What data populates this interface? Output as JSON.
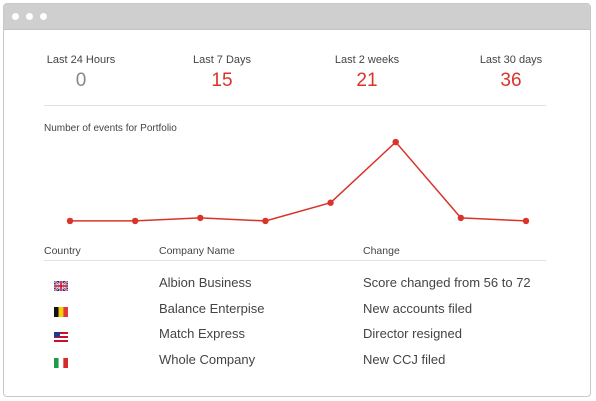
{
  "window": {
    "controls": [
      "window-dot",
      "window-dot",
      "window-dot"
    ]
  },
  "stats": [
    {
      "label": "Last 24 Hours",
      "value": "0"
    },
    {
      "label": "Last 7 Days",
      "value": "15"
    },
    {
      "label": "Last 2 weeks",
      "value": "21"
    },
    {
      "label": "Last 30 days",
      "value": "36"
    }
  ],
  "chart_data": {
    "type": "line",
    "title": "Number of events for Portfolio",
    "values": [
      2,
      2,
      3,
      2,
      8,
      28,
      3,
      2
    ],
    "ylim": [
      0,
      30
    ],
    "grid": false,
    "color": "#d9332a"
  },
  "table": {
    "headers": {
      "country": "Country",
      "company": "Company Name",
      "change": "Change"
    },
    "rows": [
      {
        "flag": "uk-flag-icon",
        "company": "Albion Business",
        "change": "Score changed from 56 to 72"
      },
      {
        "flag": "belgium-flag-icon",
        "company": "Balance Enterpise",
        "change": "New accounts filed"
      },
      {
        "flag": "us-flag-icon",
        "company": "Match Express",
        "change": "Director resigned"
      },
      {
        "flag": "italy-flag-icon",
        "company": "Whole Company",
        "change": "New CCJ filed"
      }
    ]
  }
}
